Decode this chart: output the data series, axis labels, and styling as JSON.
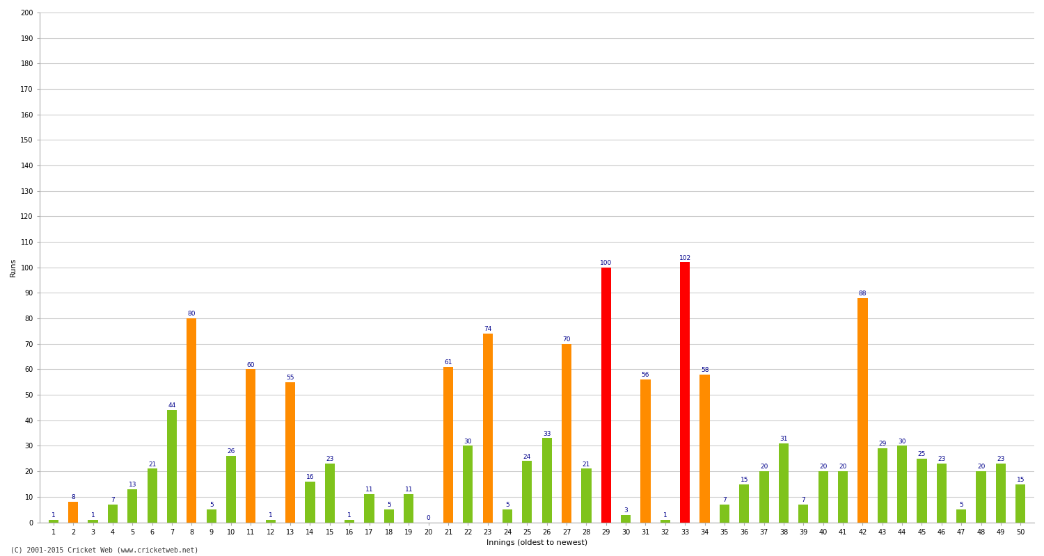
{
  "xlabel": "Innings (oldest to newest)",
  "ylabel": "Runs",
  "ylim": [
    0,
    200
  ],
  "yticks": [
    0,
    10,
    20,
    30,
    40,
    50,
    60,
    70,
    80,
    90,
    100,
    110,
    120,
    130,
    140,
    150,
    160,
    170,
    180,
    190,
    200
  ],
  "background_color": "#ffffff",
  "plot_bg_color": "#ffffff",
  "grid_color": "#cccccc",
  "innings": [
    1,
    2,
    3,
    4,
    5,
    6,
    7,
    8,
    9,
    10,
    11,
    12,
    13,
    14,
    15,
    16,
    17,
    18,
    19,
    20,
    21,
    22,
    23,
    24,
    25,
    26,
    27,
    28,
    29,
    30,
    31,
    32,
    33,
    34,
    35,
    36,
    37,
    38,
    39,
    40,
    41,
    42,
    43,
    44,
    45,
    46,
    47,
    48,
    49,
    50
  ],
  "values": [
    1,
    8,
    1,
    7,
    13,
    21,
    44,
    80,
    5,
    26,
    60,
    1,
    55,
    16,
    23,
    1,
    11,
    5,
    11,
    0,
    61,
    30,
    74,
    5,
    24,
    33,
    70,
    21,
    100,
    3,
    56,
    1,
    102,
    58,
    7,
    15,
    20,
    31,
    7,
    20,
    20,
    88,
    29,
    30,
    25,
    23,
    5,
    20,
    23,
    15
  ],
  "colors": [
    "#7fc31c",
    "#ff8c00",
    "#7fc31c",
    "#7fc31c",
    "#7fc31c",
    "#7fc31c",
    "#7fc31c",
    "#ff8c00",
    "#7fc31c",
    "#7fc31c",
    "#ff8c00",
    "#7fc31c",
    "#ff8c00",
    "#7fc31c",
    "#7fc31c",
    "#7fc31c",
    "#7fc31c",
    "#7fc31c",
    "#7fc31c",
    "#7fc31c",
    "#ff8c00",
    "#7fc31c",
    "#ff8c00",
    "#7fc31c",
    "#7fc31c",
    "#7fc31c",
    "#ff8c00",
    "#7fc31c",
    "#ff0000",
    "#7fc31c",
    "#ff8c00",
    "#7fc31c",
    "#ff0000",
    "#ff8c00",
    "#7fc31c",
    "#7fc31c",
    "#7fc31c",
    "#7fc31c",
    "#7fc31c",
    "#7fc31c",
    "#7fc31c",
    "#ff8c00",
    "#7fc31c",
    "#7fc31c",
    "#7fc31c",
    "#7fc31c",
    "#7fc31c",
    "#7fc31c",
    "#7fc31c",
    "#7fc31c"
  ],
  "bar_width": 0.5,
  "label_fontsize": 6.5,
  "label_color": "#00008b",
  "tick_fontsize": 7,
  "axis_label_fontsize": 8,
  "copyright": "(C) 2001-2015 Cricket Web (www.cricketweb.net)"
}
